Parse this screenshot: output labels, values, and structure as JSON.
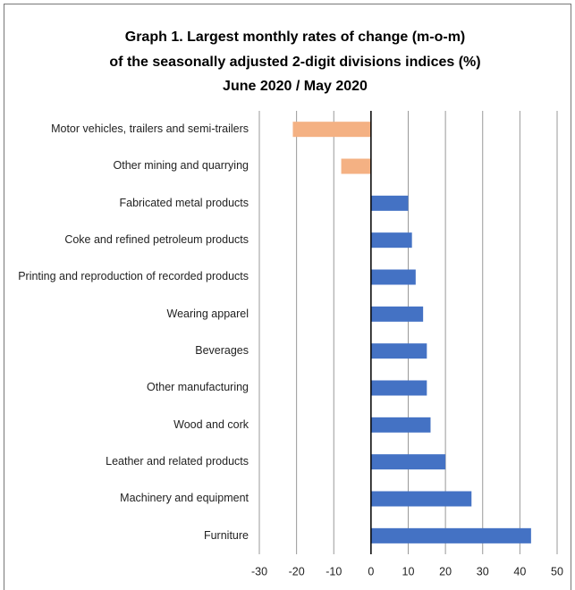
{
  "chart_data": {
    "type": "bar",
    "orientation": "horizontal",
    "title": [
      "Graph 1. Largest monthly rates of change (m-o-m)",
      "of the seasonally adjusted 2-digit divisions indices (%)",
      "June 2020 / May 2020"
    ],
    "categories": [
      "Motor vehicles, trailers and semi-trailers",
      "Other mining and quarrying",
      "Fabricated metal products",
      "Coke and refined petroleum products",
      "Printing and reproduction of recorded products",
      "Wearing apparel",
      "Beverages",
      "Other manufacturing",
      "Wood and cork",
      "Leather and related products",
      "Machinery and equipment",
      "Furniture"
    ],
    "values": [
      -21,
      -8,
      10,
      11,
      12,
      14,
      15,
      15,
      16,
      20,
      27,
      43
    ],
    "color": "#4472c4",
    "negative_color": "#f4b183",
    "xlim": [
      -30,
      50
    ],
    "xticks": [
      -30,
      -20,
      -10,
      0,
      10,
      20,
      30,
      40,
      50
    ],
    "grid": true
  }
}
